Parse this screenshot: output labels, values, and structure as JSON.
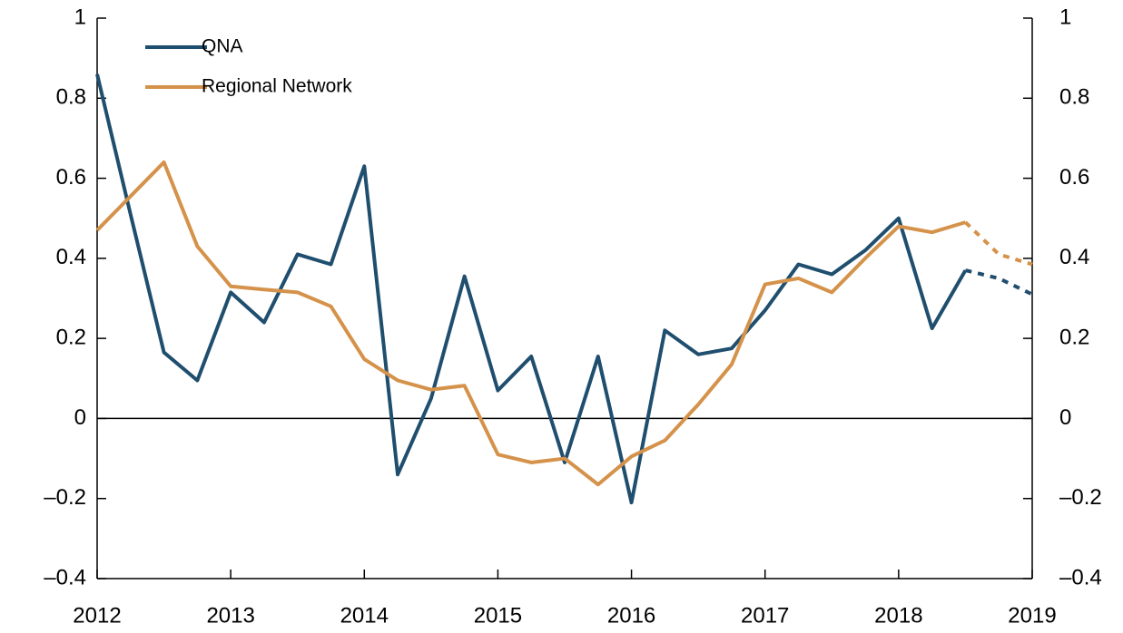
{
  "chart_data": {
    "type": "line",
    "x": [
      2012,
      2012.25,
      2012.5,
      2012.75,
      2013,
      2013.25,
      2013.5,
      2013.75,
      2014,
      2014.25,
      2014.5,
      2014.75,
      2015,
      2015.25,
      2015.5,
      2015.75,
      2016,
      2016.25,
      2016.5,
      2016.75,
      2017,
      2017.25,
      2017.5,
      2017.75,
      2018,
      2018.25,
      2018.5,
      2018.75,
      2019
    ],
    "series": [
      {
        "name": "QNA",
        "color": "#1f4e6e",
        "values": [
          0.86,
          0.51,
          0.165,
          0.095,
          0.315,
          0.24,
          0.41,
          0.385,
          0.63,
          -0.14,
          0.05,
          0.355,
          0.07,
          0.155,
          -0.11,
          0.155,
          -0.21,
          0.22,
          0.16,
          0.175,
          0.27,
          0.385,
          0.36,
          0.42,
          0.5,
          0.225,
          0.37,
          0.35,
          0.31
        ]
      },
      {
        "name": "Regional Network",
        "color": "#d4924a",
        "values": [
          0.47,
          0.555,
          0.64,
          0.43,
          0.33,
          0.322,
          0.315,
          0.28,
          0.148,
          0.095,
          0.072,
          0.082,
          -0.09,
          -0.11,
          -0.1,
          -0.165,
          -0.095,
          -0.055,
          0.035,
          0.135,
          0.335,
          0.35,
          0.315,
          0.4,
          0.48,
          0.465,
          0.49,
          0.41,
          0.385
        ]
      }
    ],
    "dashed_from": 2018.5,
    "xlim": [
      2012,
      2019
    ],
    "xticks": [
      2012,
      2013,
      2014,
      2015,
      2016,
      2017,
      2018,
      2019
    ],
    "ylim": [
      -0.4,
      1
    ],
    "yticks": [
      {
        "value": -0.4,
        "label": "–0.4"
      },
      {
        "value": -0.2,
        "label": "–0.2"
      },
      0,
      0.2,
      0.4,
      0.6,
      0.8,
      1
    ],
    "y2lim": [
      -0.4,
      1
    ],
    "y2ticks": [
      {
        "value": -0.4,
        "label": "–0.4"
      },
      {
        "value": -0.2,
        "label": "–0.2"
      },
      0,
      0.2,
      0.4,
      0.6,
      0.8,
      1
    ],
    "legend": "upper left"
  }
}
